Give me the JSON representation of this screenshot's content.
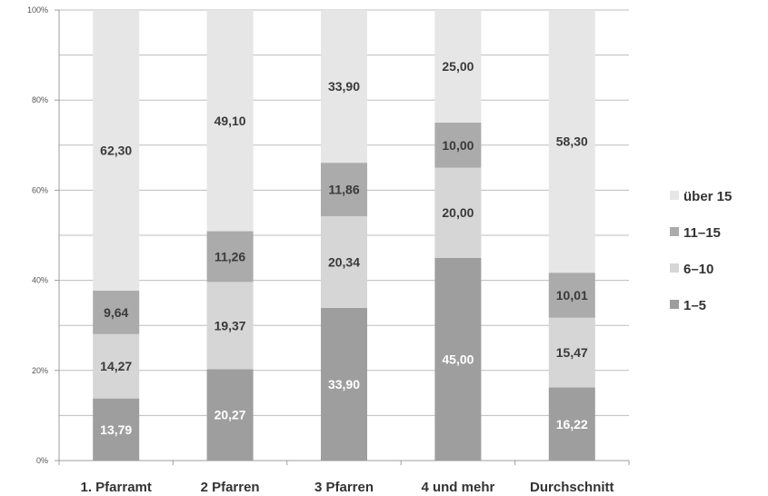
{
  "chart_data": {
    "type": "bar",
    "stacked": true,
    "percent_stacked": true,
    "categories": [
      "1. Pfarramt",
      "2 Pfarren",
      "3 Pfarren",
      "4 und mehr",
      "Durchschnitt"
    ],
    "series": [
      {
        "name": "1–5",
        "values": [
          13.79,
          20.27,
          33.9,
          45.0,
          16.22
        ],
        "labels": [
          "13,79",
          "20,27",
          "33,90",
          "45,00",
          "16,22"
        ],
        "color": "#9e9e9e",
        "label_color": "#ffffff"
      },
      {
        "name": "6–10",
        "values": [
          14.27,
          19.37,
          20.34,
          20.0,
          15.47
        ],
        "labels": [
          "14,27",
          "19,37",
          "20,34",
          "20,00",
          "15,47"
        ],
        "color": "#d6d6d6",
        "label_color": "#3a3a3a"
      },
      {
        "name": "11–15",
        "values": [
          9.64,
          11.26,
          11.86,
          10.0,
          10.01
        ],
        "labels": [
          "9,64",
          "11,26",
          "11,86",
          "10,00",
          "10,01"
        ],
        "color": "#ababab",
        "label_color": "#3a3a3a"
      },
      {
        "name": "über 15",
        "values": [
          62.3,
          49.1,
          33.9,
          25.0,
          58.3
        ],
        "labels": [
          "62,30",
          "49,10",
          "33,90",
          "25,00",
          "58,30"
        ],
        "color": "#e6e6e6",
        "label_color": "#3a3a3a"
      }
    ],
    "ylim": [
      0,
      100
    ],
    "yticks": [
      "0%",
      "20%",
      "40%",
      "60%",
      "80%",
      "100%"
    ],
    "grid": true,
    "legend_position": "right",
    "legend_order": [
      "über 15",
      "11–15",
      "6–10",
      "1–5"
    ]
  }
}
